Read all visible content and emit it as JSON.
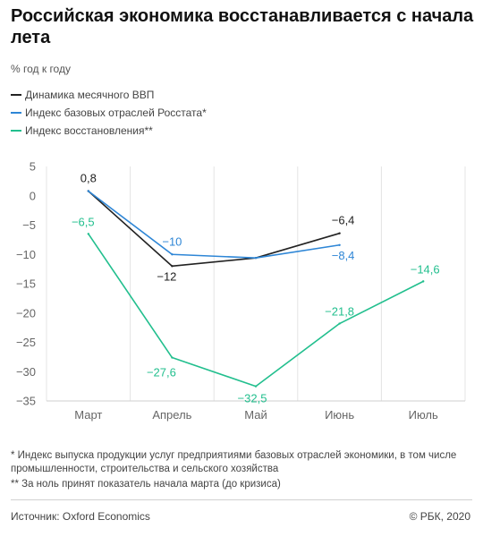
{
  "title": "Российская экономика восстанавливается с начала лета",
  "subtitle": "% год к году",
  "legend": [
    {
      "label": "Динамика месячного ВВП",
      "color": "#222222"
    },
    {
      "label": "Индекс базовых отраслей Росстата*",
      "color": "#2e86d6"
    },
    {
      "label": "Индекс восстановления**",
      "color": "#22bf8e"
    }
  ],
  "chart_data": {
    "type": "line",
    "categories": [
      "Март",
      "Апрель",
      "Май",
      "Июнь",
      "Июль"
    ],
    "ylim": [
      -35,
      5
    ],
    "yticks": [
      5,
      0,
      -5,
      -10,
      -15,
      -20,
      -25,
      -30,
      -35
    ],
    "grid": "vertical",
    "series": [
      {
        "name": "Динамика месячного ВВП",
        "color": "#222222",
        "values": [
          0.8,
          -12,
          -10.6,
          -6.4,
          null
        ],
        "labels": [
          "0,8",
          "−12",
          "",
          "−6,4",
          ""
        ]
      },
      {
        "name": "Индекс базовых отраслей Росстата*",
        "color": "#2e86d6",
        "values": [
          0.8,
          -10,
          -10.6,
          -8.4,
          null
        ],
        "labels": [
          "",
          "−10",
          "",
          "−8,4",
          ""
        ]
      },
      {
        "name": "Индекс восстановления**",
        "color": "#22bf8e",
        "values": [
          -6.5,
          -27.6,
          -32.5,
          -21.8,
          -14.6
        ],
        "labels": [
          "−6,5",
          "−27,6",
          "−32,5",
          "−21,8",
          "−14,6"
        ]
      }
    ]
  },
  "footnotes": {
    "fn1": "* Индекс выпуска продукции услуг предприятиями базовых отраслей экономики, в том числе промышленности, строительства и сельского хозяйства",
    "fn2": "** За ноль принят показатель начала марта (до кризиса)"
  },
  "source": "Источник: Oxford Economics",
  "copyright": "© РБК, 2020"
}
